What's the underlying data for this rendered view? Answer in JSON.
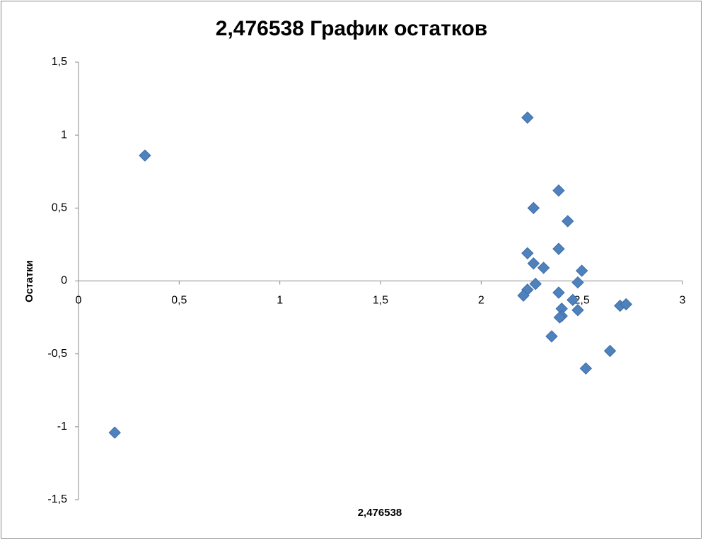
{
  "chart_data": {
    "type": "scatter",
    "title": "2,476538 График остатков",
    "x_label": "2,476538",
    "y_label": "Остатки",
    "series": [
      {
        "color": "#4f81bd",
        "x": [
          0.33,
          0.18,
          2.23,
          2.385,
          2.26,
          2.43,
          2.385,
          2.23,
          2.26,
          2.31,
          2.5,
          2.27,
          2.48,
          2.23,
          2.21,
          2.385,
          2.455,
          2.4,
          2.48,
          2.4,
          2.39,
          2.69,
          2.72,
          2.35,
          2.64,
          2.52
        ],
        "values": [
          0.86,
          -1.04,
          1.12,
          0.62,
          0.5,
          0.41,
          0.22,
          0.19,
          0.12,
          0.09,
          0.07,
          -0.02,
          -0.01,
          -0.06,
          -0.1,
          -0.08,
          -0.13,
          -0.19,
          -0.2,
          -0.24,
          -0.25,
          -0.17,
          -0.16,
          -0.38,
          -0.48,
          -0.6
        ]
      }
    ],
    "xlim": [
      0,
      3
    ],
    "xticks": [
      0,
      {
        "value": 0.5,
        "label": "0,5"
      },
      1,
      {
        "value": 1.5,
        "label": "1,5"
      },
      2,
      {
        "value": 2.5,
        "label": "2,5"
      },
      3
    ],
    "ylim": [
      -1.5,
      1.5
    ],
    "yticks": [
      {
        "value": -1.5,
        "label": "-1,5"
      },
      -1,
      {
        "value": -0.5,
        "label": "-0,5"
      },
      0,
      {
        "value": 0.5,
        "label": "0,5"
      },
      1,
      {
        "value": 1.5,
        "label": "1,5"
      }
    ]
  }
}
